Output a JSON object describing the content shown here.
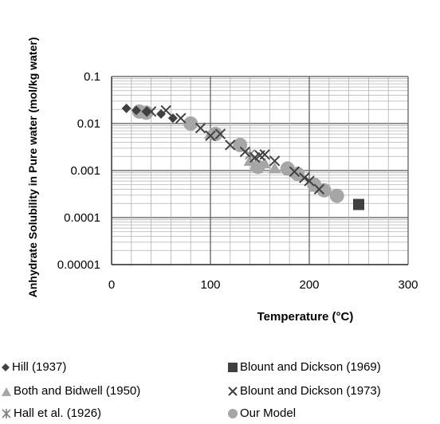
{
  "chart_data": {
    "type": "scatter",
    "xlabel": "Temperature (°C)",
    "ylabel": "Anhydrate Solubility in Pure water (mol/kg  water)",
    "xlim": [
      0,
      300
    ],
    "ylim": [
      1e-05,
      0.1
    ],
    "yscale": "log",
    "x_ticks": [
      "0",
      "100",
      "200",
      "300"
    ],
    "y_ticks": [
      "0.1",
      "0.01",
      "0.001",
      "0.0001",
      "0.00001"
    ],
    "grid": true,
    "legend_position": "bottom",
    "series": [
      {
        "name": "Hill (1937)",
        "marker": "diamond",
        "color": "#404040",
        "points": [
          [
            15,
            0.021
          ],
          [
            25,
            0.019
          ],
          [
            35,
            0.018
          ],
          [
            50,
            0.016
          ],
          [
            62,
            0.013
          ]
        ]
      },
      {
        "name": "Blount and Dickson (1969)",
        "marker": "square",
        "color": "#404040",
        "points": [
          [
            250,
            0.00019
          ]
        ]
      },
      {
        "name": "Both and Bidwell (1950)",
        "marker": "triangle",
        "color": "#a6a6a6",
        "points": [
          [
            100,
            0.006
          ],
          [
            140,
            0.0016
          ],
          [
            145,
            0.0012
          ],
          [
            155,
            0.0014
          ],
          [
            165,
            0.0011
          ],
          [
            205,
            0.00045
          ]
        ]
      },
      {
        "name": "Blount and Dickson (1973)",
        "marker": "x",
        "color": "#404040",
        "points": [
          [
            40,
            0.018
          ],
          [
            55,
            0.019
          ],
          [
            70,
            0.013
          ],
          [
            90,
            0.008
          ],
          [
            100,
            0.0055
          ],
          [
            110,
            0.006
          ],
          [
            120,
            0.0035
          ],
          [
            135,
            0.0025
          ],
          [
            145,
            0.0019
          ],
          [
            150,
            0.0021
          ],
          [
            155,
            0.0022
          ],
          [
            165,
            0.0016
          ],
          [
            185,
            0.00095
          ],
          [
            195,
            0.0007
          ],
          [
            200,
            0.0006
          ],
          [
            210,
            0.0004
          ]
        ]
      },
      {
        "name": "Hall et al. (1926)",
        "marker": "star",
        "color": "#808080",
        "points": [
          [
            35,
            0.017
          ],
          [
            105,
            0.0058
          ],
          [
            140,
            0.0022
          ],
          [
            190,
            0.0008
          ],
          [
            205,
            0.0005
          ]
        ]
      },
      {
        "name": "Our Model",
        "marker": "circle",
        "color": "#a6a6a6",
        "points": [
          [
            28,
            0.018
          ],
          [
            35,
            0.017
          ],
          [
            80,
            0.01
          ],
          [
            105,
            0.006
          ],
          [
            130,
            0.0035
          ],
          [
            148,
            0.0012
          ],
          [
            178,
            0.0011
          ],
          [
            188,
            0.00085
          ],
          [
            205,
            0.0005
          ],
          [
            215,
            0.00038
          ],
          [
            228,
            0.00029
          ]
        ]
      }
    ]
  }
}
